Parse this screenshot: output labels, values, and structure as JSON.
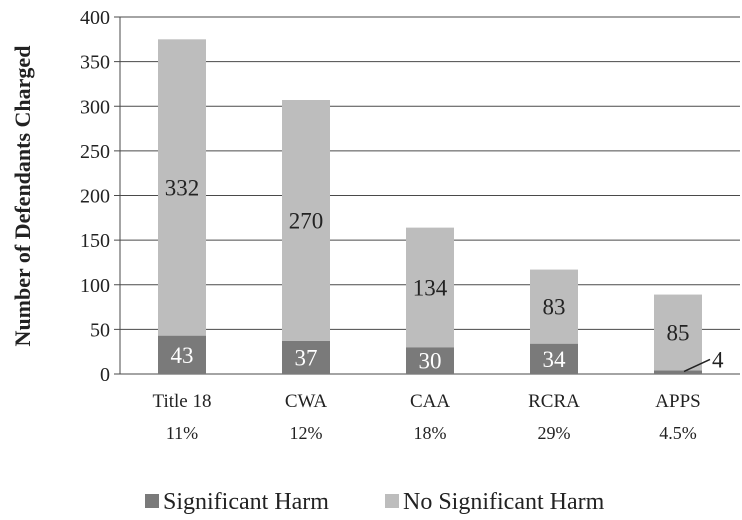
{
  "chart_data": {
    "type": "bar",
    "stacked": true,
    "ylabel": "Number of Defendants Charged",
    "ylim": [
      0,
      400
    ],
    "yticks": [
      0,
      50,
      100,
      150,
      200,
      250,
      300,
      350,
      400
    ],
    "categories": [
      "Title 18",
      "CWA",
      "CAA",
      "RCRA",
      "APPS"
    ],
    "category_percents": [
      "11%",
      "12%",
      "18%",
      "29%",
      "4.5%"
    ],
    "grid": true,
    "legend_position": "bottom",
    "series": [
      {
        "name": "Significant Harm",
        "values": [
          43,
          37,
          30,
          34,
          4
        ],
        "color": "#7a7a7a"
      },
      {
        "name": "No Significant Harm",
        "values": [
          332,
          270,
          134,
          83,
          85
        ],
        "color": "#bdbdbd"
      }
    ]
  }
}
